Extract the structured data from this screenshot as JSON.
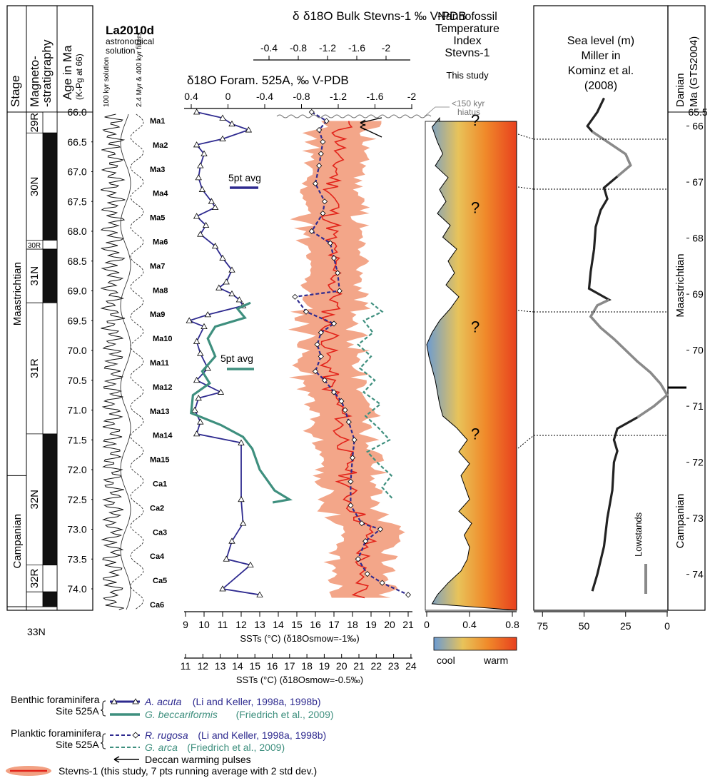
{
  "strat": {
    "stage_header": "Stage",
    "magneto_header": "Magneto-\n-stratigraphy",
    "age_header": "Age in Ma",
    "age_sub": "(K-Pg at 66)",
    "stages": [
      {
        "label": "Maastrichtian",
        "top": 66.0,
        "bottom": 72.1
      },
      {
        "label": "Campanian",
        "top": 72.1,
        "bottom": 74.3
      }
    ],
    "chrons": [
      {
        "label": "29R",
        "top": 66.0,
        "bottom": 66.35,
        "polarity": "R"
      },
      {
        "label": "30N",
        "top": 66.35,
        "bottom": 68.15,
        "polarity": "N"
      },
      {
        "label": "30R",
        "top": 68.15,
        "bottom": 68.3,
        "polarity": "R"
      },
      {
        "label": "31N",
        "top": 68.3,
        "bottom": 69.2,
        "polarity": "N"
      },
      {
        "label": "31R",
        "top": 69.2,
        "bottom": 71.4,
        "polarity": "R"
      },
      {
        "label": "32N",
        "top": 71.4,
        "bottom": 73.6,
        "polarity": "N"
      },
      {
        "label": "32R",
        "top": 73.6,
        "bottom": 74.05,
        "polarity": "R"
      },
      {
        "label": "33N",
        "top": 74.05,
        "bottom": 74.3,
        "polarity": "N"
      }
    ],
    "age_ticks": [
      "66.0",
      "66.5",
      "67.0",
      "67.5",
      "68.0",
      "68.5",
      "69.0",
      "69.5",
      "70.0",
      "70.5",
      "71.0",
      "71.5",
      "72.0",
      "72.5",
      "73.0",
      "73.5",
      "74.0"
    ]
  },
  "astro": {
    "title": "La2010d",
    "subtitle": "astronomical solution",
    "label_100": "100 kyr solution",
    "label_filters": "2.4 Myr & 400 kyr filters",
    "cycles": [
      "Ma1",
      "Ma2",
      "Ma3",
      "Ma4",
      "Ma5",
      "Ma6",
      "Ma7",
      "Ma8",
      "Ma9",
      "Ma10",
      "Ma11",
      "Ma12",
      "Ma13",
      "Ma14",
      "Ma15",
      "Ca1",
      "Ca2",
      "Ca3",
      "Ca4",
      "Ca5",
      "Ca6"
    ]
  },
  "chart_data": {
    "type": "line",
    "y_axis": "Age in Ma",
    "ylim": [
      66.0,
      74.3
    ],
    "top_axis_bulk": {
      "label": "δ18O Bulk Stevns-1 ‰ V-PDB",
      "ticks": [
        "-0.4",
        "-0.8",
        "-1.2",
        "-1.6",
        "-2"
      ]
    },
    "top_axis_foram": {
      "label": "δ18O Foram. 525A, ‰ V-PDB",
      "ticks": [
        "0.4",
        "0",
        "-0.4",
        "-0.8",
        "-1.2",
        "-1.6",
        "-2"
      ]
    },
    "bottom_axis_1": {
      "label": "SSTs (°C) (δ18Osmow=-1‰)",
      "ticks": [
        "9",
        "10",
        "11",
        "12",
        "13",
        "14",
        "15",
        "16",
        "17",
        "18",
        "19",
        "20",
        "21"
      ]
    },
    "bottom_axis_2": {
      "label": "SSTs (°C) (δ18Osmow=-0.5‰)",
      "ticks": [
        "11",
        "12",
        "13",
        "14",
        "15",
        "16",
        "17",
        "18",
        "19",
        "20",
        "21",
        "22",
        "23",
        "24"
      ]
    },
    "series": [
      {
        "name": "A. acuta",
        "group": "Benthic foraminifera Site 525A",
        "source": "(Li and Keller, 1998a, 1998b)",
        "color": "#2e2a8f",
        "points": [
          [
            66.0,
            9.6
          ],
          [
            66.1,
            11.0
          ],
          [
            66.2,
            11.5
          ],
          [
            66.3,
            12.4
          ],
          [
            66.45,
            11.0
          ],
          [
            66.55,
            9.6
          ],
          [
            66.7,
            10.0
          ],
          [
            66.9,
            9.8
          ],
          [
            67.1,
            9.7
          ],
          [
            67.3,
            9.9
          ],
          [
            67.5,
            10.4
          ],
          [
            67.6,
            10.6
          ],
          [
            67.75,
            9.6
          ],
          [
            67.9,
            10.1
          ],
          [
            68.05,
            9.8
          ],
          [
            68.25,
            10.6
          ],
          [
            68.45,
            11.0
          ],
          [
            68.65,
            11.5
          ],
          [
            68.85,
            11.2
          ],
          [
            68.95,
            10.8
          ],
          [
            69.05,
            11.5
          ],
          [
            69.15,
            11.9
          ],
          [
            69.25,
            12.1
          ],
          [
            69.4,
            10.2
          ],
          [
            69.5,
            9.2
          ],
          [
            69.6,
            10.0
          ],
          [
            69.85,
            9.6
          ],
          [
            70.05,
            9.8
          ],
          [
            70.3,
            10.2
          ],
          [
            70.5,
            9.6
          ],
          [
            70.7,
            10.9
          ],
          [
            70.8,
            9.7
          ],
          [
            71.0,
            9.5
          ],
          [
            71.2,
            9.8
          ],
          [
            71.4,
            9.6
          ],
          [
            71.55,
            12.0
          ],
          [
            72.5,
            12.0
          ],
          [
            72.9,
            12.1
          ],
          [
            73.2,
            11.5
          ],
          [
            73.5,
            11.2
          ],
          [
            73.6,
            12.5
          ],
          [
            74.0,
            11.0
          ],
          [
            74.1,
            13.0
          ]
        ]
      },
      {
        "name": "G. beccariformis",
        "group": "Benthic foraminifera Site 525A",
        "source": "(Friedrich et al., 2009)",
        "color": "#3e8f7e",
        "points": [
          [
            69.2,
            12.5
          ],
          [
            69.3,
            11.8
          ],
          [
            69.45,
            12.2
          ],
          [
            69.6,
            10.6
          ],
          [
            69.8,
            10.2
          ],
          [
            70.1,
            10.6
          ],
          [
            70.35,
            9.9
          ],
          [
            70.55,
            10.3
          ],
          [
            70.75,
            9.4
          ],
          [
            71.05,
            9.3
          ],
          [
            71.25,
            10.9
          ],
          [
            71.45,
            12.1
          ],
          [
            71.65,
            12.6
          ],
          [
            72.0,
            13.0
          ],
          [
            72.35,
            13.8
          ],
          [
            72.5,
            14.6
          ],
          [
            72.55,
            13.7
          ]
        ]
      },
      {
        "name": "R. rugosa",
        "group": "Planktic foraminifera Site 525A",
        "source": "(Li and Keller, 1998a, 1998b)",
        "color": "#2e2a8f",
        "dashed": true,
        "points": [
          [
            66.0,
            15.8
          ],
          [
            66.15,
            16.6
          ],
          [
            66.3,
            16.2
          ],
          [
            66.5,
            16.4
          ],
          [
            66.7,
            16.3
          ],
          [
            66.9,
            16.2
          ],
          [
            67.2,
            16.0
          ],
          [
            67.5,
            16.5
          ],
          [
            67.7,
            16.4
          ],
          [
            68.0,
            15.8
          ],
          [
            68.2,
            16.8
          ],
          [
            68.45,
            17.0
          ],
          [
            68.7,
            17.2
          ],
          [
            69.0,
            17.3
          ],
          [
            69.1,
            14.9
          ],
          [
            69.35,
            15.5
          ],
          [
            69.55,
            17.0
          ],
          [
            69.7,
            16.3
          ],
          [
            69.9,
            16.1
          ],
          [
            70.1,
            16.3
          ],
          [
            70.35,
            16.0
          ],
          [
            70.5,
            16.5
          ],
          [
            70.7,
            17.0
          ],
          [
            70.85,
            17.4
          ],
          [
            71.0,
            17.6
          ],
          [
            71.2,
            17.8
          ],
          [
            71.5,
            18.1
          ],
          [
            71.8,
            18.0
          ],
          [
            72.2,
            17.9
          ],
          [
            72.6,
            17.9
          ],
          [
            72.9,
            18.5
          ],
          [
            73.0,
            19.5
          ],
          [
            73.2,
            18.7
          ],
          [
            73.5,
            18.3
          ],
          [
            73.75,
            18.8
          ],
          [
            73.9,
            19.6
          ],
          [
            74.1,
            21.0
          ]
        ]
      },
      {
        "name": "G. arca",
        "group": "Planktic foraminifera Site 525A",
        "source": "(Friedrich et al., 2009)",
        "color": "#3e8f7e",
        "dashed": true,
        "points": [
          [
            69.2,
            19.0
          ],
          [
            69.35,
            19.6
          ],
          [
            69.5,
            18.6
          ],
          [
            69.7,
            19.1
          ],
          [
            69.9,
            18.3
          ],
          [
            70.1,
            19.0
          ],
          [
            70.3,
            18.4
          ],
          [
            70.5,
            19.2
          ],
          [
            70.7,
            18.6
          ],
          [
            70.9,
            19.5
          ],
          [
            71.1,
            18.7
          ],
          [
            71.3,
            19.4
          ],
          [
            71.5,
            20.0
          ],
          [
            71.7,
            18.8
          ],
          [
            71.9,
            19.4
          ],
          [
            72.1,
            20.1
          ],
          [
            72.3,
            19.6
          ],
          [
            72.5,
            20.2
          ]
        ]
      },
      {
        "name": "Stevns-1",
        "source": "(this study, 7 pts running average with 2 std dev.)",
        "color": "#e2231a",
        "band_color": "#f2a183",
        "points": [
          [
            66.15,
            17.8
          ],
          [
            66.35,
            17.3
          ],
          [
            66.55,
            17.4
          ],
          [
            66.75,
            17.0
          ],
          [
            66.95,
            17.2
          ],
          [
            67.15,
            17.0
          ],
          [
            67.35,
            16.9
          ],
          [
            67.55,
            17.1
          ],
          [
            67.75,
            16.8
          ],
          [
            67.95,
            17.0
          ],
          [
            68.15,
            16.7
          ],
          [
            68.35,
            17.0
          ],
          [
            68.55,
            16.8
          ],
          [
            68.75,
            17.2
          ],
          [
            68.95,
            16.9
          ],
          [
            69.15,
            17.1
          ],
          [
            69.35,
            16.8
          ],
          [
            69.55,
            16.6
          ],
          [
            69.75,
            16.9
          ],
          [
            69.95,
            16.7
          ],
          [
            70.15,
            16.6
          ],
          [
            70.35,
            16.8
          ],
          [
            70.55,
            16.7
          ],
          [
            70.75,
            17.0
          ],
          [
            70.95,
            17.3
          ],
          [
            71.15,
            17.5
          ],
          [
            71.35,
            17.2
          ],
          [
            71.55,
            17.7
          ],
          [
            71.75,
            17.5
          ],
          [
            71.95,
            17.9
          ],
          [
            72.15,
            17.6
          ],
          [
            72.35,
            17.8
          ],
          [
            72.55,
            17.9
          ],
          [
            72.75,
            18.3
          ],
          [
            72.95,
            18.7
          ],
          [
            73.15,
            18.9
          ],
          [
            73.35,
            18.6
          ],
          [
            73.55,
            18.5
          ],
          [
            73.75,
            18.2
          ],
          [
            73.95,
            18.6
          ],
          [
            74.15,
            18.4
          ]
        ]
      }
    ],
    "smoothing_labels": [
      "5pt avg",
      "5pt avg"
    ],
    "hiatus_label": "<150 kyr hiatus",
    "deccan_label": "Deccan warming pulses"
  },
  "nanno": {
    "title": "Nannofossil Temperature Index Stevns-1",
    "subtitle": "This study",
    "axis_ticks": [
      "0",
      "0.4",
      "0.8"
    ],
    "color_scale": {
      "cool": "cool",
      "warm": "warm",
      "cool_color": "#6b9bd2",
      "warm_color": "#e8401e"
    },
    "question_marks": [
      66.25,
      67.55,
      69.55,
      71.35
    ],
    "index": [
      [
        66.1,
        0.12
      ],
      [
        66.25,
        0.05
      ],
      [
        66.5,
        0.1
      ],
      [
        66.7,
        0.15
      ],
      [
        66.9,
        0.08
      ],
      [
        67.1,
        0.2
      ],
      [
        67.3,
        0.12
      ],
      [
        67.5,
        0.18
      ],
      [
        67.7,
        0.1
      ],
      [
        67.9,
        0.22
      ],
      [
        68.1,
        0.15
      ],
      [
        68.3,
        0.28
      ],
      [
        68.5,
        0.2
      ],
      [
        68.7,
        0.26
      ],
      [
        68.9,
        0.18
      ],
      [
        69.1,
        0.3
      ],
      [
        69.3,
        0.22
      ],
      [
        69.5,
        0.12
      ],
      [
        69.7,
        0.05
      ],
      [
        69.9,
        0.0
      ],
      [
        70.1,
        0.02
      ],
      [
        70.3,
        0.05
      ],
      [
        70.5,
        0.08
      ],
      [
        70.7,
        0.1
      ],
      [
        70.9,
        0.12
      ],
      [
        71.1,
        0.15
      ],
      [
        71.3,
        0.28
      ],
      [
        71.5,
        0.38
      ],
      [
        71.7,
        0.3
      ],
      [
        71.9,
        0.4
      ],
      [
        72.1,
        0.32
      ],
      [
        72.3,
        0.36
      ],
      [
        72.5,
        0.4
      ],
      [
        72.7,
        0.3
      ],
      [
        72.9,
        0.42
      ],
      [
        73.1,
        0.35
      ],
      [
        73.3,
        0.4
      ],
      [
        73.5,
        0.38
      ],
      [
        73.7,
        0.32
      ],
      [
        73.9,
        0.2
      ],
      [
        74.1,
        0.1
      ],
      [
        74.25,
        0.05
      ]
    ]
  },
  "sealevel": {
    "title": "Sea level (m) Miller in Kominz et al. (2008)",
    "axis_ticks": [
      "75",
      "50",
      "25",
      "0"
    ],
    "lowstands_label": "Lowstands",
    "right_stages": [
      {
        "label": "Danian",
        "top": 65.5,
        "bottom": 66.0
      },
      {
        "label": "Maastrichtian",
        "top": 66.0,
        "bottom": 70.6
      },
      {
        "label": "Campanian",
        "top": 70.6,
        "bottom": 74.3
      }
    ],
    "right_header": "Ma (GTS2004)",
    "right_ticks": [
      "65.5",
      "66",
      "67",
      "68",
      "69",
      "70",
      "71",
      "72",
      "73",
      "74"
    ],
    "curve": [
      [
        65.5,
        38
      ],
      [
        65.75,
        42
      ],
      [
        66.0,
        48
      ],
      [
        66.1,
        45
      ],
      [
        66.3,
        35
      ],
      [
        66.5,
        25
      ],
      [
        66.7,
        22
      ],
      [
        66.9,
        30
      ],
      [
        67.1,
        38
      ],
      [
        67.3,
        36
      ],
      [
        67.5,
        40
      ],
      [
        67.8,
        43
      ],
      [
        68.2,
        44
      ],
      [
        68.6,
        46
      ],
      [
        68.9,
        47
      ],
      [
        69.0,
        41
      ],
      [
        69.1,
        35
      ],
      [
        69.2,
        42
      ],
      [
        69.4,
        46
      ],
      [
        69.6,
        40
      ],
      [
        69.8,
        32
      ],
      [
        70.0,
        25
      ],
      [
        70.2,
        18
      ],
      [
        70.4,
        10
      ],
      [
        70.6,
        4
      ],
      [
        70.8,
        0
      ],
      [
        71.0,
        8
      ],
      [
        71.2,
        18
      ],
      [
        71.4,
        30
      ],
      [
        71.6,
        32
      ],
      [
        71.8,
        30
      ],
      [
        72.0,
        32
      ],
      [
        72.5,
        33
      ],
      [
        73.0,
        36
      ],
      [
        73.5,
        38
      ],
      [
        74.0,
        42
      ],
      [
        74.3,
        45
      ]
    ],
    "lowstands": [
      70.45,
      71.2
    ]
  },
  "legend": {
    "benthic_label": "Benthic foraminifera Site 525A",
    "planktic_label": "Planktic foraminifera Site 525A",
    "items": [
      {
        "name": "A. acuta",
        "source": "(Li and Keller, 1998a, 1998b)"
      },
      {
        "name": "G. beccariformis",
        "source": "(Friedrich et al., 2009)"
      },
      {
        "name": "R. rugosa",
        "source": "(Li and Keller, 1998a, 1998b)"
      },
      {
        "name": "G. arca",
        "source": "(Friedrich et al., 2009)"
      }
    ],
    "deccan": "Deccan warming pulses",
    "stevns": "Stevns-1 (this study, 7 pts running average with 2 std dev.)"
  }
}
